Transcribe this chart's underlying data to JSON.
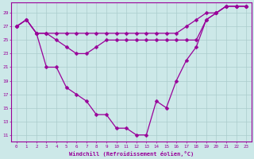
{
  "xlabel": "Windchill (Refroidissement éolien,°C)",
  "color": "#990099",
  "bg_color": "#cce8e8",
  "grid_color": "#aacccc",
  "ylim": [
    10,
    30.5
  ],
  "xlim": [
    -0.5,
    23.5
  ],
  "yticks": [
    11,
    13,
    15,
    17,
    19,
    21,
    23,
    25,
    27,
    29
  ],
  "xticks": [
    0,
    1,
    2,
    3,
    4,
    5,
    6,
    7,
    8,
    9,
    10,
    11,
    12,
    13,
    14,
    15,
    16,
    17,
    18,
    19,
    20,
    21,
    22,
    23
  ],
  "markersize": 2.5,
  "linewidth": 0.9,
  "s1_x": [
    0,
    1,
    2,
    3,
    4,
    5,
    6,
    7,
    8,
    9,
    10,
    11,
    12,
    13,
    14,
    15,
    16,
    17,
    18,
    19,
    20,
    21,
    22,
    23
  ],
  "s1_y": [
    27,
    28,
    26,
    26,
    26,
    26,
    26,
    26,
    26,
    26,
    26,
    26,
    26,
    26,
    26,
    26,
    26,
    27,
    28,
    29,
    29,
    30,
    30,
    30
  ],
  "s2_x": [
    0,
    1,
    2,
    3,
    4,
    5,
    6,
    7,
    8,
    9,
    10,
    11,
    12,
    13,
    14,
    15,
    16,
    17,
    18,
    19,
    20,
    21,
    22,
    23
  ],
  "s2_y": [
    27,
    28,
    26,
    26,
    25,
    24,
    23,
    23,
    24,
    25,
    25,
    25,
    25,
    25,
    25,
    25,
    25,
    25,
    25,
    28,
    29,
    30,
    30,
    30
  ],
  "s3_x": [
    0,
    1,
    2,
    3,
    4,
    5,
    6,
    7,
    8,
    9,
    10,
    11,
    12,
    13,
    14,
    15,
    16,
    17,
    18,
    19,
    20,
    21,
    22,
    23
  ],
  "s3_y": [
    27,
    28,
    26,
    21,
    21,
    18,
    17,
    16,
    14,
    14,
    12,
    12,
    11,
    11,
    16,
    15,
    19,
    22,
    24,
    28,
    29,
    30,
    30,
    30
  ]
}
